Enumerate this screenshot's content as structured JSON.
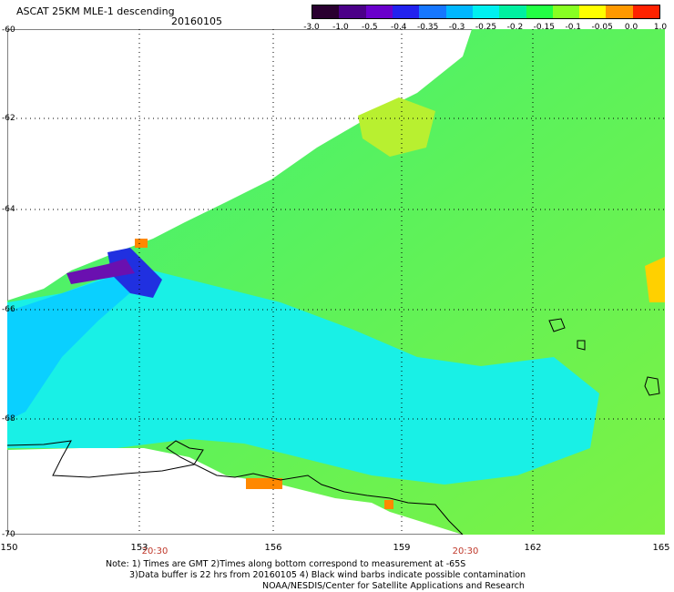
{
  "header": {
    "title": "ASCAT 25KM MLE-1 descending",
    "date": "20160105"
  },
  "colorbar": {
    "labels": [
      "-3.0",
      "-1.0",
      "-0.5",
      "-0.4",
      "-0.35",
      "-0.3",
      "-0.25",
      "-0.2",
      "-0.15",
      "-0.1",
      "-0.05",
      "0.0",
      "1.0"
    ],
    "colors": [
      "#2a0030",
      "#4b0088",
      "#6a00cc",
      "#2222ee",
      "#1677ff",
      "#00b7ff",
      "#00f0f0",
      "#00f0a0",
      "#22ff44",
      "#88ff22",
      "#ffff00",
      "#ff9900",
      "#ff2200"
    ]
  },
  "axes": {
    "lat_labels": [
      "-60",
      "-62",
      "-64",
      "-66",
      "-68",
      "-70"
    ],
    "lon_labels": [
      "150",
      "153",
      "156",
      "159",
      "162",
      "165"
    ]
  },
  "time_labels": [
    "20:30",
    "20:30"
  ],
  "notes": {
    "line1": "Note: 1) Times are GMT 2)Times along bottom correspond to measurement at -65S",
    "line2": "3)Data buffer is 22 hrs from 20160105 4) Black wind barbs indicate possible contamination",
    "line3": "NOAA/NESDIS/Center for Satellite Applications and Research"
  }
}
